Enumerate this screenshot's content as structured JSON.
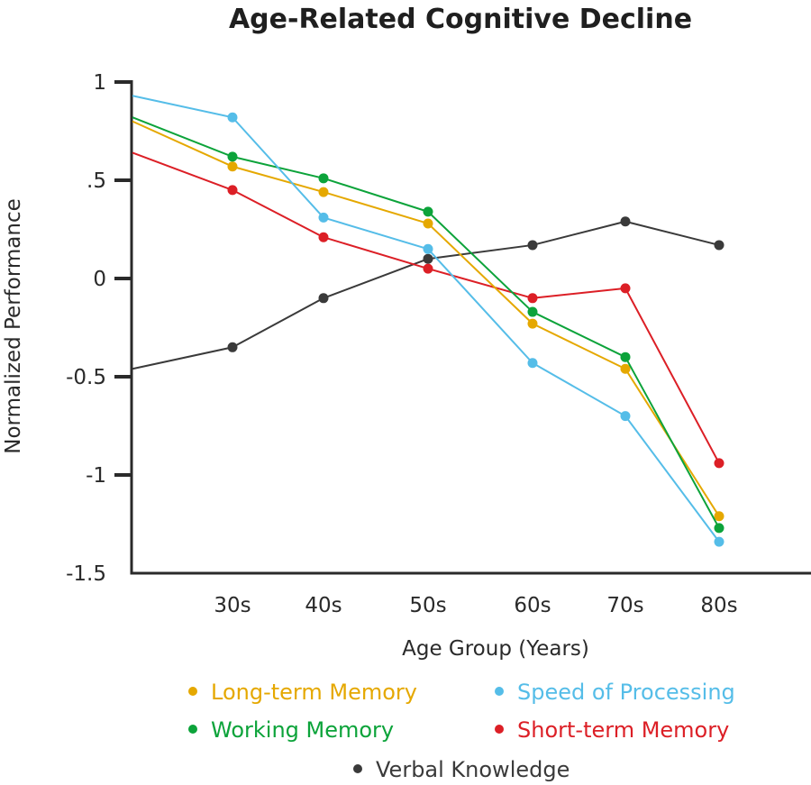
{
  "chart_data": {
    "type": "line",
    "title": "Age-Related Cognitive Decline",
    "xlabel": "Age Group (Years)",
    "ylabel": "Normalized Performance",
    "categories": [
      "30s",
      "40s",
      "50s",
      "60s",
      "70s",
      "80s"
    ],
    "ylim": [
      -1.5,
      1
    ],
    "yticks": [
      1,
      0.5,
      0,
      -0.5,
      -1,
      -1.5
    ],
    "ytick_labels": [
      "1",
      ".5",
      "0",
      "-0.5",
      "-1",
      "-1.5"
    ],
    "grid": false,
    "legend_position": "bottom",
    "series": [
      {
        "name": "Long-term Memory",
        "color": "#e5a800",
        "axis_start_value": 0.8,
        "values": [
          0.57,
          0.44,
          0.28,
          -0.23,
          -0.46,
          -1.21
        ]
      },
      {
        "name": "Speed of Processing",
        "color": "#55bde8",
        "axis_start_value": 0.93,
        "values": [
          0.82,
          0.31,
          0.15,
          -0.43,
          -0.7,
          -1.34
        ]
      },
      {
        "name": "Working Memory",
        "color": "#0ca33a",
        "axis_start_value": 0.82,
        "values": [
          0.62,
          0.51,
          0.34,
          -0.17,
          -0.4,
          -1.27
        ]
      },
      {
        "name": "Short-term Memory",
        "color": "#dc1f26",
        "axis_start_value": 0.64,
        "values": [
          0.45,
          0.21,
          0.05,
          -0.1,
          -0.05,
          -0.94
        ]
      },
      {
        "name": "Verbal Knowledge",
        "color": "#3a3a3a",
        "axis_start_value": -0.46,
        "values": [
          -0.35,
          -0.1,
          0.1,
          0.17,
          0.29,
          0.17
        ]
      }
    ]
  },
  "legend": {
    "bullet": "•"
  }
}
